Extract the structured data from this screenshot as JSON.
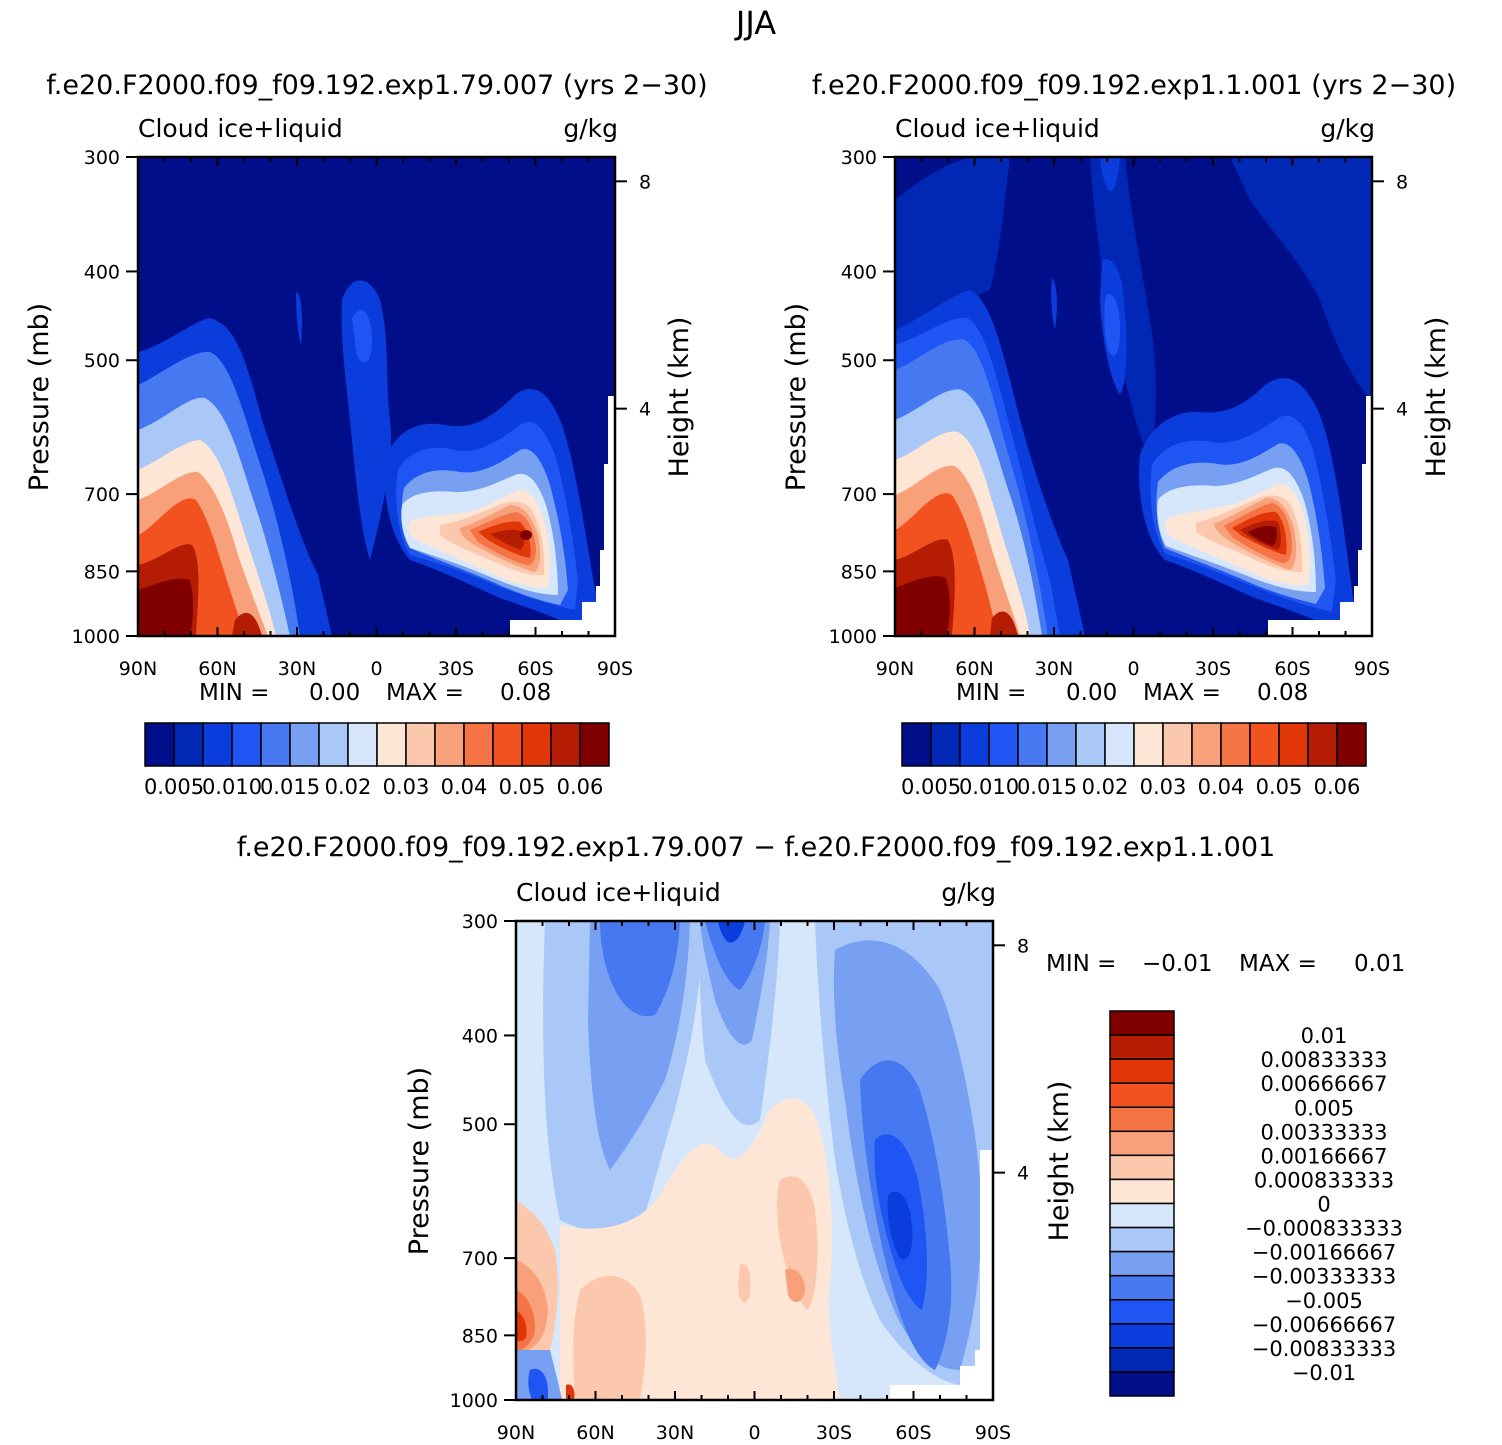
{
  "figure": {
    "title": "JJA",
    "panel_a_title": "f.e20.F2000.f09_f09.192.exp1.79.007 (yrs 2−30)",
    "panel_b_title": "f.e20.F2000.f09_f09.192.exp1.1.001 (yrs 2−30)",
    "panel_c_title": "f.e20.F2000.f09_f09.192.exp1.79.007 − f.e20.F2000.f09_f09.192.exp1.1.001"
  },
  "colors": {
    "mean_scale": [
      "#000e8a",
      "#0028b5",
      "#0a3ddb",
      "#1f55f2",
      "#4678f2",
      "#78a0f2",
      "#aac8f7",
      "#d6e7fb",
      "#fde6d5",
      "#fcc8ad",
      "#f8a07a",
      "#f47446",
      "#f2521f",
      "#e03608",
      "#b41d03",
      "#800000"
    ],
    "diff_scale": [
      "#000e8a",
      "#0028b5",
      "#0a3ddb",
      "#1f55f2",
      "#4678f2",
      "#78a0f2",
      "#aac8f7",
      "#d6e7fb",
      "#fde6d5",
      "#fcc8ad",
      "#f8a07a",
      "#f47446",
      "#f2521f",
      "#e03608",
      "#b41d03",
      "#800000"
    ]
  },
  "chart_data": [
    {
      "id": "panel-a",
      "type": "contour",
      "title": "f.e20.F2000.f09_f09.192.exp1.79.007 (yrs 2−30)",
      "variable": "Cloud ice+liquid",
      "units": "g/kg",
      "xlabel": "",
      "ylabel": "Pressure (mb)",
      "ylabel_right": "Height (km)",
      "x_ticks": [
        "90N",
        "60N",
        "30N",
        "0",
        "30S",
        "60S",
        "90S"
      ],
      "y_ticks": [
        "300",
        "400",
        "500",
        "700",
        "850",
        "1000"
      ],
      "y_ticks_right": [
        "8",
        "4"
      ],
      "ylim": [
        1000,
        300
      ],
      "xlim": [
        "90N",
        "90S"
      ],
      "min_label": "MIN =",
      "min_value": "0.00",
      "max_label": "MAX =",
      "max_value": "0.08",
      "colorbar_labels": [
        "0.005",
        "0.010",
        "0.015",
        "0.02",
        "0.03",
        "0.04",
        "0.05",
        "0.06"
      ]
    },
    {
      "id": "panel-b",
      "type": "contour",
      "title": "f.e20.F2000.f09_f09.192.exp1.1.001 (yrs 2−30)",
      "variable": "Cloud ice+liquid",
      "units": "g/kg",
      "xlabel": "",
      "ylabel": "Pressure (mb)",
      "ylabel_right": "Height (km)",
      "x_ticks": [
        "90N",
        "60N",
        "30N",
        "0",
        "30S",
        "60S",
        "90S"
      ],
      "y_ticks": [
        "300",
        "400",
        "500",
        "700",
        "850",
        "1000"
      ],
      "y_ticks_right": [
        "8",
        "4"
      ],
      "ylim": [
        1000,
        300
      ],
      "xlim": [
        "90N",
        "90S"
      ],
      "min_label": "MIN =",
      "min_value": "0.00",
      "max_label": "MAX =",
      "max_value": "0.08",
      "colorbar_labels": [
        "0.005",
        "0.010",
        "0.015",
        "0.02",
        "0.03",
        "0.04",
        "0.05",
        "0.06"
      ]
    },
    {
      "id": "panel-c",
      "type": "contour",
      "title": "f.e20.F2000.f09_f09.192.exp1.79.007 − f.e20.F2000.f09_f09.192.exp1.1.001",
      "variable": "Cloud ice+liquid",
      "units": "g/kg",
      "xlabel": "",
      "ylabel": "Pressure (mb)",
      "ylabel_right": "Height (km)",
      "x_ticks": [
        "90N",
        "60N",
        "30N",
        "0",
        "30S",
        "60S",
        "90S"
      ],
      "y_ticks": [
        "300",
        "400",
        "500",
        "700",
        "850",
        "1000"
      ],
      "y_ticks_right": [
        "8",
        "4"
      ],
      "ylim": [
        1000,
        300
      ],
      "xlim": [
        "90N",
        "90S"
      ],
      "min_label": "MIN =",
      "min_value": "−0.01",
      "max_label": "MAX =",
      "max_value": "0.01",
      "colorbar_labels": [
        "0.01",
        "0.00833333",
        "0.00666667",
        "0.005",
        "0.00333333",
        "0.00166667",
        "0.000833333",
        "0",
        "−0.000833333",
        "−0.00166667",
        "−0.00333333",
        "−0.005",
        "−0.00666667",
        "−0.00833333",
        "−0.01"
      ]
    }
  ]
}
